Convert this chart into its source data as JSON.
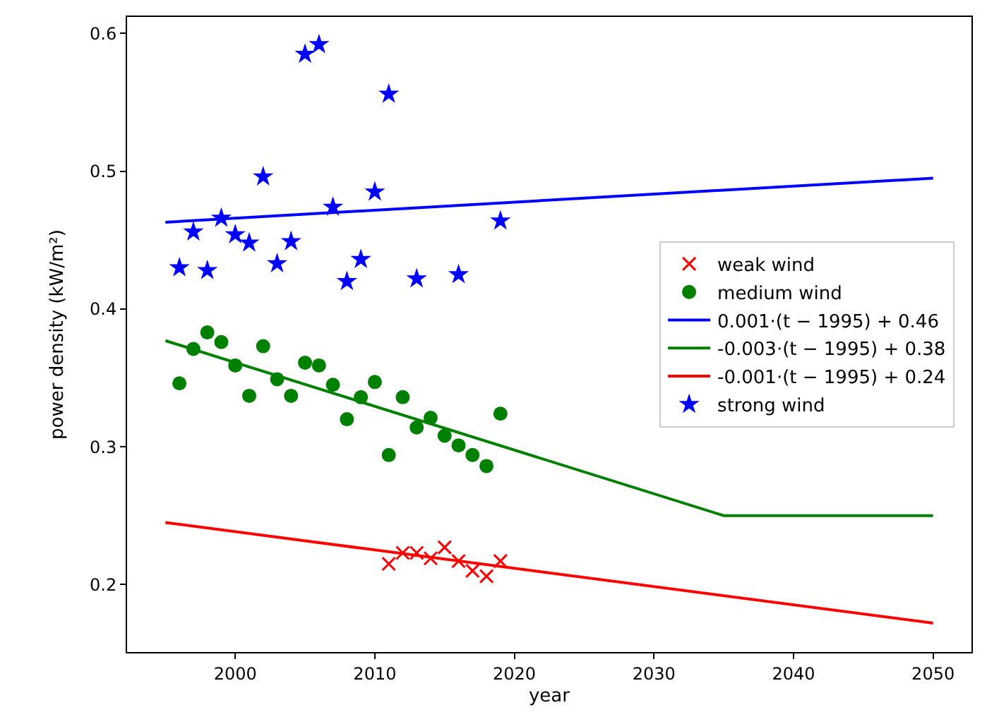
{
  "chart_data": {
    "type": "scatter",
    "xlabel": "year",
    "ylabel": "power density (kW/m²)",
    "xlim": [
      1992.25,
      2052.75
    ],
    "xticks": [
      2000,
      2010,
      2020,
      2030,
      2040,
      2050
    ],
    "ylim": [
      0.151,
      0.612
    ],
    "yticks": [
      0.2,
      0.3,
      0.4,
      0.5,
      0.6
    ],
    "legend": "right",
    "series": [
      {
        "name": "weak wind",
        "marker": "cross",
        "color": "#ff0000",
        "x": [
          2011,
          2012,
          2013,
          2014,
          2015,
          2016,
          2017,
          2018,
          2019
        ],
        "values": [
          0.215,
          0.223,
          0.223,
          0.219,
          0.227,
          0.217,
          0.21,
          0.206,
          0.217
        ]
      },
      {
        "name": "medium wind",
        "marker": "circle",
        "color": "#008000",
        "x": [
          1996,
          1997,
          1998,
          1999,
          2000,
          2001,
          2002,
          2003,
          2004,
          2005,
          2006,
          2007,
          2008,
          2009,
          2010,
          2011,
          2012,
          2013,
          2014,
          2015,
          2016,
          2017,
          2018,
          2019
        ],
        "values": [
          0.346,
          0.371,
          0.383,
          0.376,
          0.359,
          0.337,
          0.373,
          0.349,
          0.337,
          0.361,
          0.359,
          0.345,
          0.32,
          0.336,
          0.347,
          0.294,
          0.336,
          0.314,
          0.321,
          0.308,
          0.301,
          0.294,
          0.286,
          0.324
        ]
      },
      {
        "name": "0.001·(t − 1995) + 0.46",
        "type": "line",
        "marker": "none",
        "color": "#0000ff",
        "x": [
          1995,
          2050
        ],
        "values": [
          0.463,
          0.495
        ]
      },
      {
        "name": "-0.003·(t − 1995) + 0.38",
        "type": "line",
        "marker": "none",
        "color": "#008000",
        "x": [
          1995,
          2035,
          2050
        ],
        "values": [
          0.377,
          0.25,
          0.25
        ]
      },
      {
        "name": "-0.001·(t − 1995) + 0.24",
        "type": "line",
        "marker": "none",
        "color": "#ff0000",
        "x": [
          1995,
          2050
        ],
        "values": [
          0.245,
          0.172
        ]
      },
      {
        "name": "strong wind",
        "marker": "star",
        "color": "#0000ff",
        "x": [
          1996,
          1997,
          1998,
          1999,
          2000,
          2001,
          2002,
          2003,
          2004,
          2005,
          2006,
          2007,
          2008,
          2009,
          2010,
          2011,
          2013,
          2016,
          2019
        ],
        "values": [
          0.43,
          0.456,
          0.428,
          0.466,
          0.454,
          0.448,
          0.496,
          0.433,
          0.449,
          0.585,
          0.592,
          0.474,
          0.42,
          0.436,
          0.485,
          0.556,
          0.422,
          0.425,
          0.464
        ]
      }
    ]
  }
}
